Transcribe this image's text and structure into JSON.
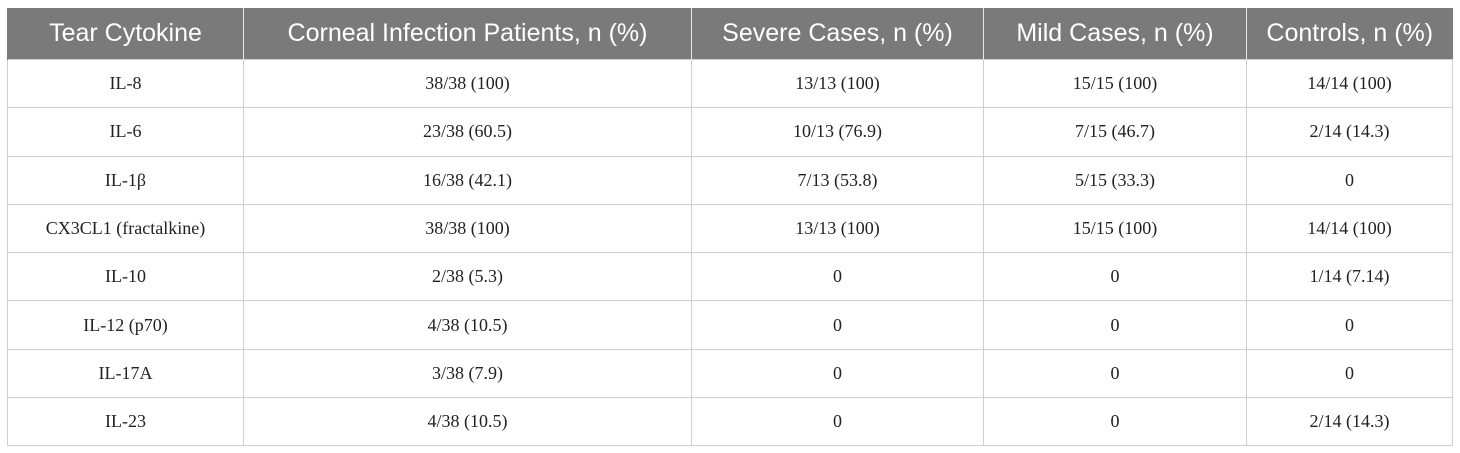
{
  "table": {
    "headers": [
      "Tear Cytokine",
      "Corneal Infection Patients, n (%)",
      "Severe Cases, n (%)",
      "Mild Cases, n (%)",
      "Controls, n (%)"
    ],
    "rows": [
      [
        "IL-8",
        "38/38 (100)",
        "13/13 (100)",
        "15/15 (100)",
        "14/14 (100)"
      ],
      [
        "IL-6",
        "23/38 (60.5)",
        "10/13 (76.9)",
        "7/15 (46.7)",
        "2/14 (14.3)"
      ],
      [
        "IL-1β",
        "16/38 (42.1)",
        "7/13 (53.8)",
        "5/15 (33.3)",
        "0"
      ],
      [
        "CX3CL1 (fractalkine)",
        "38/38 (100)",
        "13/13 (100)",
        "15/15 (100)",
        "14/14 (100)"
      ],
      [
        "IL-10",
        "2/38 (5.3)",
        "0",
        "0",
        "1/14 (7.14)"
      ],
      [
        "IL-12 (p70)",
        "4/38 (10.5)",
        "0",
        "0",
        "0"
      ],
      [
        "IL-17A",
        "3/38 (7.9)",
        "0",
        "0",
        "0"
      ],
      [
        "IL-23",
        "4/38 (10.5)",
        "0",
        "0",
        "2/14 (14.3)"
      ]
    ]
  },
  "colors": {
    "header_background": "#7a7a7a",
    "header_text": "#ffffff",
    "grid_lines": "#cfcfcf"
  }
}
